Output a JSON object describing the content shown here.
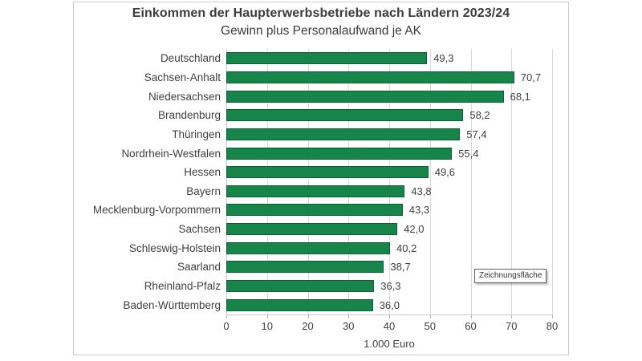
{
  "chart_data": {
    "type": "bar",
    "orientation": "horizontal",
    "title": "Einkommen der Haupterwerbsbetriebe nach Ländern 2023/24",
    "subtitle": "Gewinn plus Personalaufwand je AK",
    "categories": [
      "Deutschland",
      "Sachsen-Anhalt",
      "Niedersachsen",
      "Brandenburg",
      "Thüringen",
      "Nordrhein-Westfalen",
      "Hessen",
      "Bayern",
      "Mecklenburg-Vorpommern",
      "Sachsen",
      "Schleswig-Holstein",
      "Saarland",
      "Rheinland-Pfalz",
      "Baden-Württemberg"
    ],
    "values": [
      49.3,
      70.7,
      68.1,
      58.2,
      57.4,
      55.4,
      49.6,
      43.8,
      43.3,
      42.0,
      40.2,
      38.7,
      36.3,
      36.0
    ],
    "value_labels": [
      "49,3",
      "70,7",
      "68,1",
      "58,2",
      "57,4",
      "55,4",
      "49,6",
      "43,8",
      "43,3",
      "42,0",
      "40,2",
      "38,7",
      "36,3",
      "36,0"
    ],
    "xlabel": "1.000 Euro",
    "xlim": [
      0,
      80
    ],
    "xticks": [
      0,
      10,
      20,
      30,
      40,
      50,
      60,
      70,
      80
    ],
    "grid": "vertical-gridlines",
    "legend": "none",
    "bar_color": "#17854a",
    "bar_border_color": "#0c5f33"
  },
  "tooltip": {
    "label": "Zeichnungsfläche"
  }
}
